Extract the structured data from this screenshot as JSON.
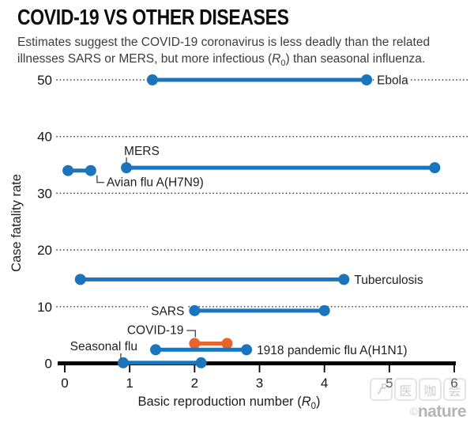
{
  "header": {
    "title": "COVID-19 VS OTHER DISEASES",
    "subtitle_line1": "Estimates suggest the COVID-19 coronavirus is less deadly than the related",
    "subtitle_line2_pre": "illnesses SARS or MERS, but more infectious (",
    "subtitle_r": "R",
    "subtitle_r_sub": "0",
    "subtitle_line2_post": ") than seasonal influenza."
  },
  "chart_data": {
    "type": "scatter",
    "subtype": "horizontal-range-dumbbell",
    "title": "COVID-19 VS OTHER DISEASES",
    "ylabel": "Case fatality rate",
    "xlabel_pre": "Basic reproduction number (",
    "xlabel_symbol": "R",
    "xlabel_sub": "0",
    "xlabel_post": ")",
    "xlim": [
      0,
      6
    ],
    "ylim": [
      0,
      52
    ],
    "x_ticks": [
      0,
      1,
      2,
      3,
      4,
      5,
      6
    ],
    "y_ticks": [
      0,
      10,
      20,
      30,
      40,
      50
    ],
    "grid": "dotted horizontal gridlines at each y tick",
    "legend": "none (direct labels on series)",
    "colors": {
      "default_series": "#1b75bc",
      "highlight_series": "#e8632c",
      "axis": "#000000",
      "grid_dots": "#3e3e3e",
      "text": "#1d1d1d"
    },
    "series": [
      {
        "name": "Ebola",
        "x": [
          1.35,
          4.65
        ],
        "y": 50,
        "color": "#1b75bc",
        "label_pos": "right"
      },
      {
        "name": "MERS",
        "x": [
          0.95,
          5.7
        ],
        "y": 34.5,
        "color": "#1b75bc",
        "label_pos": "above-left-leader"
      },
      {
        "name": "Avian flu A(H7N9)",
        "x": [
          0.05,
          0.4
        ],
        "y": 34.0,
        "color": "#1b75bc",
        "label_pos": "below-right-leader"
      },
      {
        "name": "Tuberculosis",
        "x": [
          0.24,
          4.3
        ],
        "y": 14.8,
        "color": "#1b75bc",
        "label_pos": "right"
      },
      {
        "name": "SARS",
        "x": [
          2.0,
          4.0
        ],
        "y": 9.3,
        "color": "#1b75bc",
        "label_pos": "left"
      },
      {
        "name": "COVID-19",
        "x": [
          2.0,
          2.5
        ],
        "y": 3.5,
        "color": "#e8632c",
        "label_pos": "above-elbow-leader"
      },
      {
        "name": "1918 pandemic flu A(H1N1)",
        "x": [
          1.4,
          2.8
        ],
        "y": 2.4,
        "color": "#1b75bc",
        "label_pos": "right"
      },
      {
        "name": "Seasonal flu",
        "x": [
          0.9,
          2.1
        ],
        "y": 0.1,
        "color": "#1b75bc",
        "label_pos": "above-left-leader-down"
      }
    ]
  },
  "watermark": {
    "tiles": [
      "logo",
      "医",
      "咖",
      "会"
    ],
    "credit_symbol": "©",
    "credit_name": "nature"
  }
}
